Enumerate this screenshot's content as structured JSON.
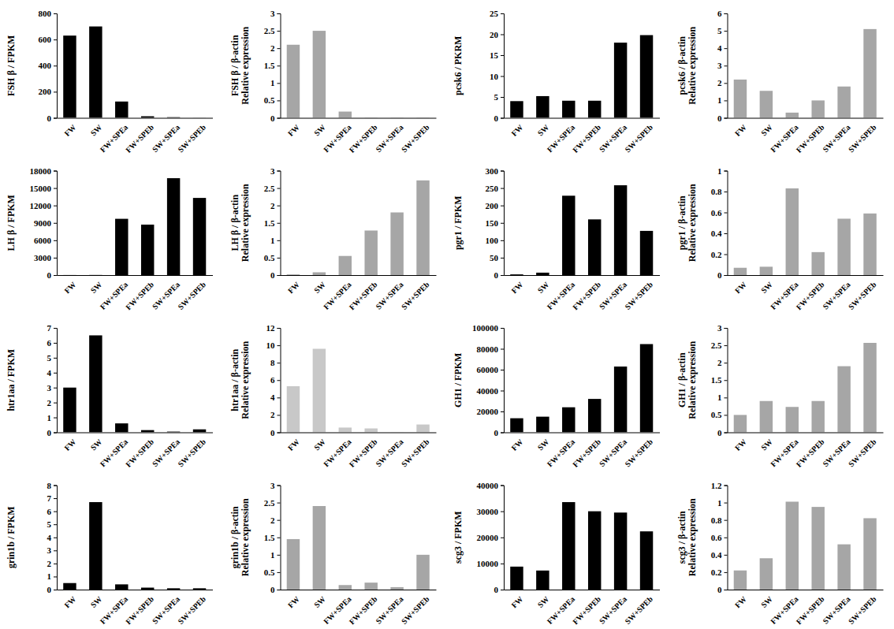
{
  "chart_data": [
    {
      "type": "bar",
      "ylabel": [
        "FSH β / FPKM"
      ],
      "categories": [
        "FW",
        "SW",
        "FW+SPEa",
        "FW+SPEb",
        "SW+SPEa",
        "SW+SPEb"
      ],
      "values": [
        630,
        700,
        125,
        12,
        5,
        1
      ],
      "color": "#000000",
      "ylim": [
        0,
        800
      ],
      "yticks": [
        0,
        200,
        400,
        600,
        800
      ]
    },
    {
      "type": "bar",
      "ylabel": [
        "FSH β / β-actin",
        "Relative expression"
      ],
      "categories": [
        "FW",
        "SW",
        "FW+SPEa",
        "FW+SPEb",
        "SW+SPEa",
        "SW+SPEb"
      ],
      "values": [
        2.1,
        2.5,
        0.18,
        0.01,
        0.01,
        0.01
      ],
      "color": "#a6a6a6",
      "ylim": [
        0,
        3
      ],
      "yticks": [
        0,
        0.5,
        1,
        1.5,
        2,
        2.5,
        3
      ]
    },
    {
      "type": "bar",
      "ylabel": [
        "pcsk6 / PKRM"
      ],
      "categories": [
        "FW",
        "SW",
        "FW+SPEa",
        "FW+SPEb",
        "SW+SPEa",
        "SW+SPEb"
      ],
      "values": [
        4,
        5.2,
        4.1,
        4.1,
        18,
        19.8
      ],
      "color": "#000000",
      "ylim": [
        0,
        25
      ],
      "yticks": [
        0,
        5,
        10,
        15,
        20,
        25
      ]
    },
    {
      "type": "bar",
      "ylabel": [
        "pcsk6 / β-actin",
        "Relative expression"
      ],
      "categories": [
        "FW",
        "SW",
        "FW+SPEa",
        "FW+SPEb",
        "SW+SPEa",
        "SW+SPEb"
      ],
      "values": [
        2.2,
        1.55,
        0.3,
        1.0,
        1.8,
        5.1
      ],
      "color": "#a6a6a6",
      "ylim": [
        0,
        6
      ],
      "yticks": [
        0,
        1,
        2,
        3,
        4,
        5,
        6
      ]
    },
    {
      "type": "bar",
      "ylabel": [
        "LH β / FPKM"
      ],
      "categories": [
        "FW",
        "SW",
        "FW+SPEa",
        "FW+SPEb",
        "SW+SPEa",
        "SW+SPEb"
      ],
      "values": [
        10,
        20,
        9700,
        8700,
        16700,
        13300
      ],
      "color": "#000000",
      "ylim": [
        0,
        18000
      ],
      "yticks": [
        0,
        3000,
        6000,
        9000,
        12000,
        15000,
        18000
      ]
    },
    {
      "type": "bar",
      "ylabel": [
        "LH β / β-actin",
        "Relative expression"
      ],
      "categories": [
        "FW",
        "SW",
        "FW+SPEa",
        "FW+SPEb",
        "SW+SPEa",
        "SW+SPEb"
      ],
      "values": [
        0.02,
        0.08,
        0.55,
        1.28,
        1.8,
        2.72
      ],
      "color": "#a6a6a6",
      "ylim": [
        0,
        3
      ],
      "yticks": [
        0,
        0.5,
        1,
        1.5,
        2,
        2.5,
        3
      ]
    },
    {
      "type": "bar",
      "ylabel": [
        "pgr1 / FPKM"
      ],
      "categories": [
        "FW",
        "SW",
        "FW+SPEa",
        "FW+SPEb",
        "SW+SPEa",
        "SW+SPEb"
      ],
      "values": [
        2,
        7,
        228,
        160,
        258,
        127
      ],
      "color": "#000000",
      "ylim": [
        0,
        300
      ],
      "yticks": [
        0,
        50,
        100,
        150,
        200,
        250,
        300
      ]
    },
    {
      "type": "bar",
      "ylabel": [
        "pgr1 / β-actin",
        "Relative expression"
      ],
      "categories": [
        "FW",
        "SW",
        "FW+SPEa",
        "FW+SPEb",
        "SW+SPEa",
        "SW+SPEb"
      ],
      "values": [
        0.07,
        0.08,
        0.83,
        0.22,
        0.54,
        0.59
      ],
      "color": "#a6a6a6",
      "ylim": [
        0,
        1
      ],
      "yticks": [
        0,
        0.2,
        0.4,
        0.6,
        0.8,
        1
      ]
    },
    {
      "type": "bar",
      "ylabel": [
        "htr1aa / FPKM"
      ],
      "categories": [
        "FW",
        "SW",
        "FW+SPEa",
        "FW+SPEb",
        "SW+SPEa",
        "SW+SPEb"
      ],
      "values": [
        3.0,
        6.5,
        0.6,
        0.15,
        0.05,
        0.2
      ],
      "color": "#000000",
      "ylim": [
        0,
        7
      ],
      "yticks": [
        0,
        1,
        2,
        3,
        4,
        5,
        6,
        7
      ]
    },
    {
      "type": "bar",
      "ylabel": [
        "htr1aa / β-actin",
        "Relative expression"
      ],
      "categories": [
        "FW",
        "SW",
        "FW+SPEa",
        "FW+SPEb",
        "SW+SPEa",
        "SW+SPEb"
      ],
      "values": [
        5.3,
        9.6,
        0.55,
        0.45,
        0.02,
        0.9
      ],
      "color": "#c8c8c8",
      "ylim": [
        0,
        12
      ],
      "yticks": [
        0,
        2,
        4,
        6,
        8,
        10,
        12
      ]
    },
    {
      "type": "bar",
      "ylabel": [
        "GH1 / FPKM"
      ],
      "categories": [
        "FW",
        "SW",
        "FW+SPEa",
        "FW+SPEb",
        "SW+SPEa",
        "SW+SPEb"
      ],
      "values": [
        13500,
        15000,
        24000,
        32000,
        63000,
        84500
      ],
      "color": "#000000",
      "ylim": [
        0,
        100000
      ],
      "yticks": [
        0,
        20000,
        40000,
        60000,
        80000,
        100000
      ]
    },
    {
      "type": "bar",
      "ylabel": [
        "GH1 / β-actin",
        "Relative expression"
      ],
      "categories": [
        "FW",
        "SW",
        "FW+SPEa",
        "FW+SPEb",
        "SW+SPEa",
        "SW+SPEb"
      ],
      "values": [
        0.5,
        0.9,
        0.73,
        0.9,
        1.9,
        2.57
      ],
      "color": "#a6a6a6",
      "ylim": [
        0,
        3
      ],
      "yticks": [
        0,
        0.5,
        1,
        1.5,
        2,
        2.5,
        3
      ]
    },
    {
      "type": "bar",
      "ylabel": [
        "grin1b / FPKM"
      ],
      "categories": [
        "FW",
        "SW",
        "FW+SPEa",
        "FW+SPEb",
        "SW+SPEa",
        "SW+SPEb"
      ],
      "values": [
        0.5,
        6.7,
        0.4,
        0.15,
        0.1,
        0.1
      ],
      "color": "#000000",
      "ylim": [
        0,
        8
      ],
      "yticks": [
        0,
        1,
        2,
        3,
        4,
        5,
        6,
        7,
        8
      ]
    },
    {
      "type": "bar",
      "ylabel": [
        "grin1b / β-actin",
        "Relative expression"
      ],
      "categories": [
        "FW",
        "SW",
        "FW+SPEa",
        "FW+SPEb",
        "SW+SPEa",
        "SW+SPEb"
      ],
      "values": [
        1.45,
        2.4,
        0.13,
        0.2,
        0.07,
        1.0
      ],
      "color": "#a6a6a6",
      "ylim": [
        0,
        3
      ],
      "yticks": [
        0,
        0.5,
        1,
        1.5,
        2,
        2.5,
        3
      ]
    },
    {
      "type": "bar",
      "ylabel": [
        "scg3 / FPKM"
      ],
      "categories": [
        "FW",
        "SW",
        "FW+SPEa",
        "FW+SPEb",
        "SW+SPEa",
        "SW+SPEb"
      ],
      "values": [
        8800,
        7300,
        33500,
        30000,
        29500,
        22300
      ],
      "color": "#000000",
      "ylim": [
        0,
        40000
      ],
      "yticks": [
        0,
        10000,
        20000,
        30000,
        40000
      ]
    },
    {
      "type": "bar",
      "ylabel": [
        "scg3 / β-actin",
        "Relative expression"
      ],
      "categories": [
        "FW",
        "SW",
        "FW+SPEa",
        "FW+SPEb",
        "SW+SPEa",
        "SW+SPEb"
      ],
      "values": [
        0.22,
        0.36,
        1.01,
        0.95,
        0.52,
        0.82
      ],
      "color": "#a6a6a6",
      "ylim": [
        0,
        1.2
      ],
      "yticks": [
        0,
        0.2,
        0.4,
        0.6,
        0.8,
        1,
        1.2
      ]
    }
  ]
}
